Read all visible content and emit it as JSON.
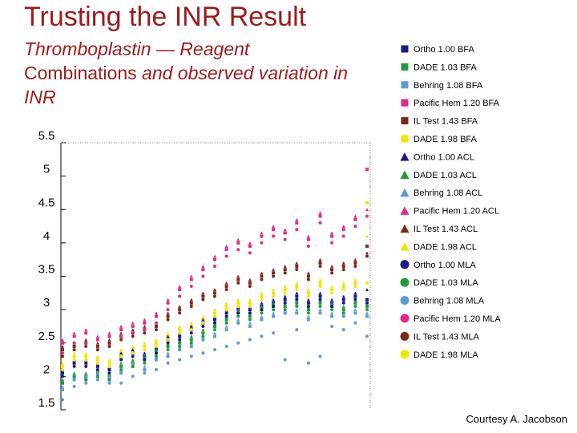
{
  "header": {
    "title": "Trusting the INR Result",
    "subtitle_1": "Thromboplastin — Reagent",
    "subtitle_2": "Combinations",
    "subtitle_3": "and observed variation in INR"
  },
  "footer": {
    "credit": "Courtesy A. Jacobson"
  },
  "chart_data": {
    "type": "scatter",
    "title": "",
    "xlabel": "",
    "ylabel": "",
    "ylim": [
      1.5,
      5.5
    ],
    "yticks": [
      "5.5",
      "5",
      "4.5",
      "4",
      "3.5",
      "3",
      "2.5",
      "2",
      "1.5"
    ],
    "grid": false,
    "x_count": 27,
    "legend_placement": "right",
    "series": [
      {
        "name": "Ortho 1.00 BFA",
        "marker": "square",
        "color": "#1a1a8c",
        "values": [
          2.05,
          2.2,
          2.2,
          2.15,
          2.1,
          2.3,
          2.35,
          2.3,
          2.4,
          2.55,
          2.6,
          2.7,
          2.8,
          2.85,
          2.95,
          3.0,
          3.0,
          3.05,
          3.1,
          3.15,
          3.2,
          3.1,
          3.2,
          3.1,
          3.15,
          3.2,
          3.15
        ]
      },
      {
        "name": "DADE 1.03 BFA",
        "marker": "square",
        "color": "#1f9b3a",
        "values": [
          1.9,
          2.0,
          2.0,
          2.05,
          2.0,
          2.15,
          2.2,
          2.25,
          2.35,
          2.45,
          2.5,
          2.55,
          2.65,
          2.75,
          2.85,
          2.95,
          2.9,
          3.0,
          3.05,
          3.05,
          3.1,
          3.0,
          3.1,
          3.05,
          3.0,
          3.1,
          3.05
        ]
      },
      {
        "name": "Behring 1.08 BFA",
        "marker": "square",
        "color": "#5b9bd5",
        "values": [
          1.8,
          1.95,
          1.95,
          2.0,
          1.95,
          2.05,
          2.15,
          2.1,
          2.25,
          2.3,
          2.4,
          2.45,
          2.55,
          2.6,
          2.7,
          2.8,
          2.75,
          2.85,
          2.9,
          2.95,
          2.95,
          2.85,
          2.95,
          2.9,
          2.9,
          2.95,
          2.9
        ]
      },
      {
        "name": "Pacific Hem 1.20 BFA",
        "marker": "square",
        "color": "#e0288a",
        "values": [
          2.5,
          2.6,
          2.65,
          2.55,
          2.6,
          2.7,
          2.75,
          2.8,
          2.9,
          3.1,
          3.3,
          3.45,
          3.6,
          3.75,
          3.9,
          4.0,
          3.95,
          4.1,
          4.2,
          4.15,
          4.3,
          4.05,
          4.4,
          4.1,
          4.2,
          4.35,
          5.1
        ]
      },
      {
        "name": "IL Test 1.43 BFA",
        "marker": "square",
        "color": "#7a2a1a",
        "values": [
          2.4,
          2.45,
          2.5,
          2.45,
          2.5,
          2.6,
          2.65,
          2.7,
          2.75,
          2.9,
          3.0,
          3.1,
          3.2,
          3.25,
          3.35,
          3.45,
          3.4,
          3.5,
          3.55,
          3.6,
          3.65,
          3.5,
          3.7,
          3.6,
          3.65,
          3.7,
          3.95
        ]
      },
      {
        "name": "DADE 1.98 BFA",
        "marker": "square",
        "color": "#f2e600",
        "values": [
          2.15,
          2.3,
          2.3,
          2.25,
          2.2,
          2.35,
          2.4,
          2.45,
          2.5,
          2.6,
          2.7,
          2.75,
          2.85,
          2.95,
          3.05,
          3.1,
          3.1,
          3.2,
          3.25,
          3.3,
          3.35,
          3.25,
          3.4,
          3.3,
          3.35,
          3.4,
          4.6
        ]
      },
      {
        "name": "Ortho 1.00 ACL",
        "marker": "triangle",
        "color": "#1a1a8c",
        "values": [
          2.1,
          2.25,
          2.25,
          2.2,
          2.15,
          2.35,
          2.4,
          2.35,
          2.45,
          2.6,
          2.65,
          2.75,
          2.85,
          2.9,
          3.0,
          3.05,
          3.05,
          3.1,
          3.15,
          3.2,
          3.25,
          3.15,
          3.25,
          3.15,
          3.2,
          3.25,
          3.3
        ]
      },
      {
        "name": "DADE 1.03 ACL",
        "marker": "triangle",
        "color": "#1f9b3a",
        "values": [
          1.95,
          2.05,
          2.05,
          2.1,
          2.05,
          2.2,
          2.25,
          2.3,
          2.4,
          2.5,
          2.55,
          2.6,
          2.7,
          2.8,
          2.9,
          3.0,
          2.95,
          3.05,
          3.1,
          3.1,
          3.15,
          3.05,
          3.15,
          3.1,
          3.05,
          3.15,
          3.1
        ]
      },
      {
        "name": "Behring 1.08 ACL",
        "marker": "triangle",
        "color": "#5b9bd5",
        "values": [
          1.85,
          2.0,
          2.0,
          2.05,
          2.0,
          2.1,
          2.2,
          2.15,
          2.3,
          2.35,
          2.45,
          2.5,
          2.6,
          2.65,
          2.75,
          2.85,
          2.8,
          2.9,
          2.95,
          3.0,
          3.0,
          2.9,
          3.0,
          2.95,
          2.95,
          3.0,
          2.95
        ]
      },
      {
        "name": "Pacific Hem 1.20 ACL",
        "marker": "triangle",
        "color": "#e0288a",
        "values": [
          2.55,
          2.65,
          2.7,
          2.6,
          2.65,
          2.75,
          2.8,
          2.85,
          2.95,
          3.15,
          3.35,
          3.5,
          3.65,
          3.8,
          3.95,
          4.05,
          4.0,
          4.15,
          4.25,
          4.2,
          4.35,
          4.1,
          4.45,
          4.15,
          4.25,
          4.4,
          4.5
        ]
      },
      {
        "name": "IL Test 1.43 ACL",
        "marker": "triangle",
        "color": "#7a2a1a",
        "values": [
          2.45,
          2.5,
          2.55,
          2.5,
          2.55,
          2.65,
          2.7,
          2.75,
          2.8,
          2.95,
          3.05,
          3.15,
          3.25,
          3.3,
          3.4,
          3.5,
          3.45,
          3.55,
          3.6,
          3.65,
          3.7,
          3.55,
          3.75,
          3.65,
          3.7,
          3.75,
          3.85
        ]
      },
      {
        "name": "DADE 1.98 ACL",
        "marker": "triangle",
        "color": "#f2e600",
        "values": [
          2.2,
          2.35,
          2.35,
          2.3,
          2.25,
          2.4,
          2.45,
          2.5,
          2.55,
          2.65,
          2.75,
          2.8,
          2.9,
          3.0,
          3.1,
          3.15,
          3.15,
          3.25,
          3.3,
          3.35,
          3.4,
          3.3,
          3.45,
          3.35,
          3.4,
          3.45,
          4.1
        ]
      },
      {
        "name": "Ortho 1.00 MLA",
        "marker": "circle",
        "color": "#1a1a8c",
        "values": [
          2.0,
          2.15,
          2.15,
          2.1,
          2.05,
          2.25,
          2.3,
          2.25,
          2.35,
          2.5,
          2.55,
          2.65,
          2.75,
          2.8,
          2.9,
          2.95,
          2.95,
          3.0,
          3.05,
          3.1,
          3.15,
          3.05,
          3.15,
          3.05,
          3.1,
          3.15,
          3.1
        ]
      },
      {
        "name": "DADE 1.03 MLA",
        "marker": "circle",
        "color": "#1f9b3a",
        "values": [
          1.9,
          2.0,
          1.95,
          2.0,
          1.95,
          2.1,
          2.15,
          2.2,
          2.3,
          2.4,
          2.45,
          2.5,
          2.6,
          2.7,
          2.8,
          2.9,
          2.85,
          2.95,
          3.0,
          3.0,
          3.05,
          2.95,
          3.05,
          3.0,
          2.95,
          3.05,
          3.0
        ]
      },
      {
        "name": "Behring 1.08 MLA",
        "marker": "circle",
        "color": "#5b9bd5",
        "values": [
          1.65,
          1.85,
          1.9,
          1.95,
          1.9,
          1.9,
          2.0,
          2.05,
          2.1,
          2.2,
          2.25,
          2.3,
          2.35,
          2.4,
          2.45,
          2.5,
          2.55,
          2.6,
          2.65,
          2.25,
          2.7,
          2.2,
          2.3,
          2.75,
          2.7,
          2.8,
          2.6
        ]
      },
      {
        "name": "Pacific Hem 1.20 MLA",
        "marker": "circle",
        "color": "#e0288a",
        "values": [
          2.35,
          2.5,
          2.5,
          2.4,
          2.45,
          2.6,
          2.65,
          2.7,
          2.8,
          3.0,
          3.2,
          3.35,
          3.5,
          3.65,
          3.8,
          3.9,
          3.85,
          4.0,
          4.1,
          4.05,
          4.2,
          3.95,
          4.3,
          4.0,
          4.1,
          4.25,
          4.4
        ]
      },
      {
        "name": "IL Test 1.43 MLA",
        "marker": "circle",
        "color": "#7a2a1a",
        "values": [
          2.3,
          2.4,
          2.45,
          2.4,
          2.45,
          2.55,
          2.6,
          2.65,
          2.7,
          2.85,
          2.95,
          3.05,
          3.15,
          3.2,
          3.3,
          3.4,
          3.35,
          3.45,
          3.5,
          3.55,
          3.6,
          3.45,
          3.65,
          3.55,
          3.6,
          3.65,
          3.8
        ]
      },
      {
        "name": "DADE 1.98 MLA",
        "marker": "circle",
        "color": "#f2e600",
        "values": [
          2.1,
          2.25,
          2.25,
          2.2,
          2.15,
          2.3,
          2.35,
          2.4,
          2.45,
          2.55,
          2.65,
          2.7,
          2.8,
          2.9,
          3.0,
          3.05,
          3.05,
          3.15,
          3.2,
          3.25,
          3.3,
          3.2,
          3.35,
          3.25,
          3.3,
          3.35,
          3.4
        ]
      }
    ]
  }
}
